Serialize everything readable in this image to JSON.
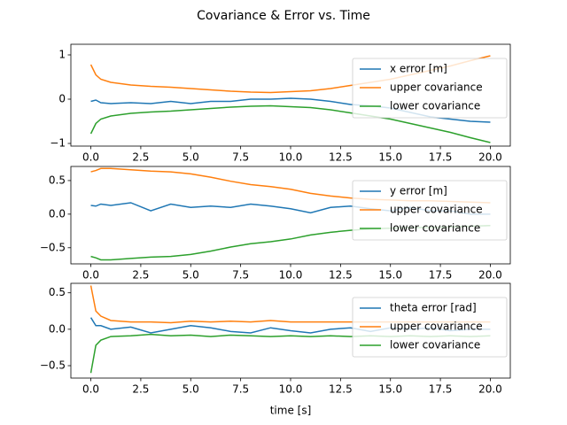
{
  "title": "Covariance & Error vs. Time",
  "chart_data": [
    {
      "type": "line",
      "x": [
        0,
        0.25,
        0.5,
        1,
        2,
        3,
        4,
        5,
        6,
        7,
        8,
        9,
        10,
        11,
        12,
        13,
        14,
        15,
        16,
        17,
        18,
        19,
        20
      ],
      "series": [
        {
          "name": "x error [m]",
          "color": "#1f77b4",
          "values": [
            -0.05,
            -0.02,
            -0.08,
            -0.1,
            -0.08,
            -0.1,
            -0.05,
            -0.1,
            -0.05,
            -0.05,
            0.0,
            0.0,
            0.02,
            0.0,
            -0.05,
            -0.12,
            -0.15,
            -0.2,
            -0.3,
            -0.4,
            -0.45,
            -0.5,
            -0.52
          ]
        },
        {
          "name": "upper covariance",
          "color": "#ff7f0e",
          "values": [
            0.78,
            0.55,
            0.45,
            0.38,
            0.32,
            0.29,
            0.27,
            0.24,
            0.21,
            0.18,
            0.16,
            0.15,
            0.17,
            0.19,
            0.24,
            0.31,
            0.38,
            0.45,
            0.55,
            0.65,
            0.75,
            0.87,
            0.98
          ]
        },
        {
          "name": "lower covariance",
          "color": "#2ca02c",
          "values": [
            -0.78,
            -0.55,
            -0.45,
            -0.38,
            -0.32,
            -0.29,
            -0.27,
            -0.24,
            -0.21,
            -0.18,
            -0.16,
            -0.15,
            -0.17,
            -0.19,
            -0.24,
            -0.31,
            -0.38,
            -0.45,
            -0.55,
            -0.65,
            -0.75,
            -0.87,
            -0.98
          ]
        }
      ],
      "xlim": [
        -1,
        21
      ],
      "ylim": [
        -1.06,
        1.24
      ],
      "xticks": [
        {
          "value": 0,
          "label": "0.0"
        },
        {
          "value": 2.5,
          "label": "2.5"
        },
        {
          "value": 5,
          "label": "5.0"
        },
        {
          "value": 7.5,
          "label": "7.5"
        },
        {
          "value": 10,
          "label": "10.0"
        },
        {
          "value": 12.5,
          "label": "12.5"
        },
        {
          "value": 15,
          "label": "15.0"
        },
        {
          "value": 17.5,
          "label": "17.5"
        },
        {
          "value": 20,
          "label": "20.0"
        }
      ],
      "yticks": [
        {
          "value": -1,
          "label": "−1"
        },
        0,
        1
      ],
      "legend": "upper right"
    },
    {
      "type": "line",
      "x": [
        0,
        0.25,
        0.5,
        1,
        2,
        3,
        4,
        5,
        6,
        7,
        8,
        9,
        10,
        11,
        12,
        13,
        14,
        15,
        16,
        17,
        18,
        19,
        20
      ],
      "series": [
        {
          "name": "y error [m]",
          "color": "#1f77b4",
          "values": [
            0.13,
            0.12,
            0.15,
            0.13,
            0.17,
            0.05,
            0.15,
            0.1,
            0.12,
            0.1,
            0.15,
            0.12,
            0.08,
            0.02,
            0.1,
            0.12,
            0.08,
            0.05,
            0.1,
            0.05,
            0.05,
            0.0,
            0.0
          ]
        },
        {
          "name": "upper covariance",
          "color": "#ff7f0e",
          "values": [
            0.63,
            0.65,
            0.68,
            0.68,
            0.66,
            0.64,
            0.63,
            0.6,
            0.55,
            0.49,
            0.44,
            0.41,
            0.37,
            0.31,
            0.27,
            0.24,
            0.22,
            0.21,
            0.2,
            0.2,
            0.19,
            0.18,
            0.17
          ]
        },
        {
          "name": "lower covariance",
          "color": "#2ca02c",
          "values": [
            -0.63,
            -0.65,
            -0.68,
            -0.68,
            -0.66,
            -0.64,
            -0.63,
            -0.6,
            -0.55,
            -0.49,
            -0.44,
            -0.41,
            -0.37,
            -0.31,
            -0.27,
            -0.24,
            -0.22,
            -0.21,
            -0.2,
            -0.2,
            -0.19,
            -0.18,
            -0.17
          ]
        }
      ],
      "xlim": [
        -1,
        21
      ],
      "ylim": [
        -0.74,
        0.71
      ],
      "xticks": [
        {
          "value": 0,
          "label": "0.0"
        },
        {
          "value": 2.5,
          "label": "2.5"
        },
        {
          "value": 5,
          "label": "5.0"
        },
        {
          "value": 7.5,
          "label": "7.5"
        },
        {
          "value": 10,
          "label": "10.0"
        },
        {
          "value": 12.5,
          "label": "12.5"
        },
        {
          "value": 15,
          "label": "15.0"
        },
        {
          "value": 17.5,
          "label": "17.5"
        },
        {
          "value": 20,
          "label": "20.0"
        }
      ],
      "yticks": [
        {
          "value": -0.5,
          "label": "−0.5"
        },
        {
          "value": 0,
          "label": "0.0"
        },
        0.5
      ],
      "legend": "upper right"
    },
    {
      "type": "line",
      "xlabel": "time [s]",
      "x": [
        0,
        0.25,
        0.5,
        1,
        2,
        3,
        4,
        5,
        6,
        7,
        8,
        9,
        10,
        11,
        12,
        13,
        14,
        15,
        16,
        17,
        18,
        19,
        20
      ],
      "series": [
        {
          "name": "theta error [rad]",
          "color": "#1f77b4",
          "values": [
            0.16,
            0.05,
            0.05,
            0.0,
            0.03,
            -0.05,
            0.0,
            0.05,
            0.02,
            -0.03,
            -0.05,
            0.02,
            -0.02,
            -0.05,
            0.0,
            0.02,
            -0.03,
            0.02,
            0.0,
            0.02,
            -0.02,
            0.0,
            0.0
          ]
        },
        {
          "name": "upper covariance",
          "color": "#ff7f0e",
          "values": [
            0.6,
            0.25,
            0.18,
            0.12,
            0.1,
            0.1,
            0.09,
            0.11,
            0.1,
            0.11,
            0.1,
            0.12,
            0.1,
            0.1,
            0.1,
            0.1,
            0.1,
            0.1,
            0.1,
            0.1,
            0.1,
            0.1,
            0.1
          ]
        },
        {
          "name": "lower covariance",
          "color": "#2ca02c",
          "values": [
            -0.6,
            -0.22,
            -0.15,
            -0.1,
            -0.09,
            -0.07,
            -0.09,
            -0.08,
            -0.1,
            -0.08,
            -0.09,
            -0.1,
            -0.09,
            -0.1,
            -0.09,
            -0.1,
            -0.09,
            -0.1,
            -0.09,
            -0.1,
            -0.09,
            -0.1,
            -0.09
          ]
        }
      ],
      "xlim": [
        -1,
        21
      ],
      "ylim": [
        -0.67,
        0.63
      ],
      "xticks": [
        {
          "value": 0,
          "label": "0.0"
        },
        {
          "value": 2.5,
          "label": "2.5"
        },
        {
          "value": 5,
          "label": "5.0"
        },
        {
          "value": 7.5,
          "label": "7.5"
        },
        {
          "value": 10,
          "label": "10.0"
        },
        {
          "value": 12.5,
          "label": "12.5"
        },
        {
          "value": 15,
          "label": "15.0"
        },
        {
          "value": 17.5,
          "label": "17.5"
        },
        {
          "value": 20,
          "label": "20.0"
        }
      ],
      "yticks": [
        {
          "value": -0.5,
          "label": "−0.5"
        },
        {
          "value": 0,
          "label": "0.0"
        },
        0.5
      ],
      "legend": "upper right"
    }
  ]
}
